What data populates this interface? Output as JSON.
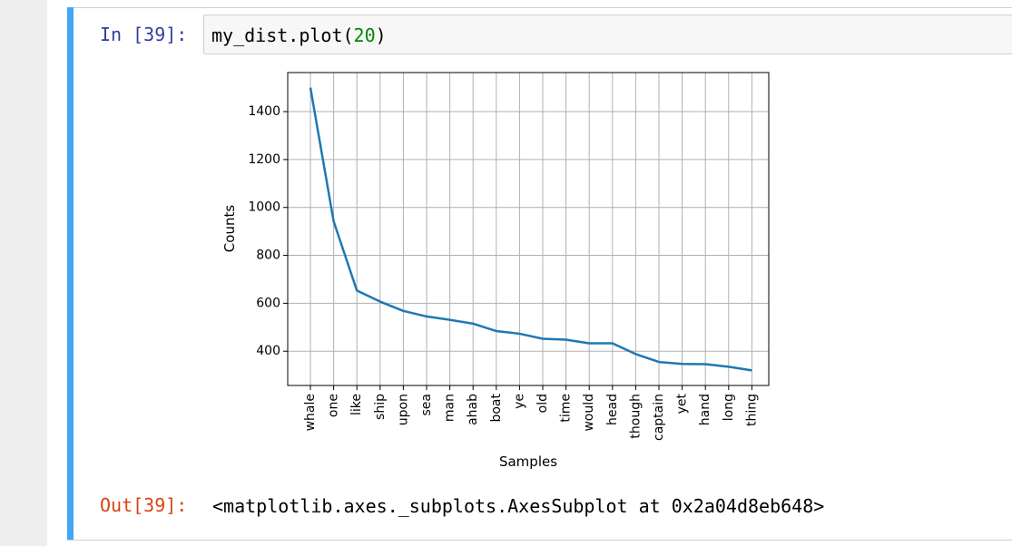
{
  "cell": {
    "in_prompt": "In [39]:",
    "code_prefix": "my_dist.plot(",
    "code_arg": "20",
    "code_suffix": ")",
    "out_prompt": "Out[39]:",
    "output_text": "<matplotlib.axes._subplots.AxesSubplot at 0x2a04d8eb648>"
  },
  "colors": {
    "accent": "#42a5f5",
    "line": "#1f77b4",
    "in_prompt": "#303f9f",
    "out_prompt": "#d84315"
  },
  "chart_data": {
    "type": "line",
    "categories": [
      "whale",
      "one",
      "like",
      "ship",
      "upon",
      "sea",
      "man",
      "ahab",
      "boat",
      "ye",
      "old",
      "time",
      "would",
      "head",
      "though",
      "captain",
      "yet",
      "hand",
      "long",
      "thing"
    ],
    "values": [
      1500,
      942,
      653,
      607,
      568,
      545,
      531,
      515,
      484,
      473,
      452,
      448,
      433,
      433,
      388,
      355,
      347,
      346,
      335,
      320
    ],
    "xlabel": "Samples",
    "ylabel": "Counts",
    "yticks": [
      400,
      600,
      800,
      1000,
      1200,
      1400
    ],
    "ylim": [
      257,
      1563
    ],
    "grid": true
  }
}
